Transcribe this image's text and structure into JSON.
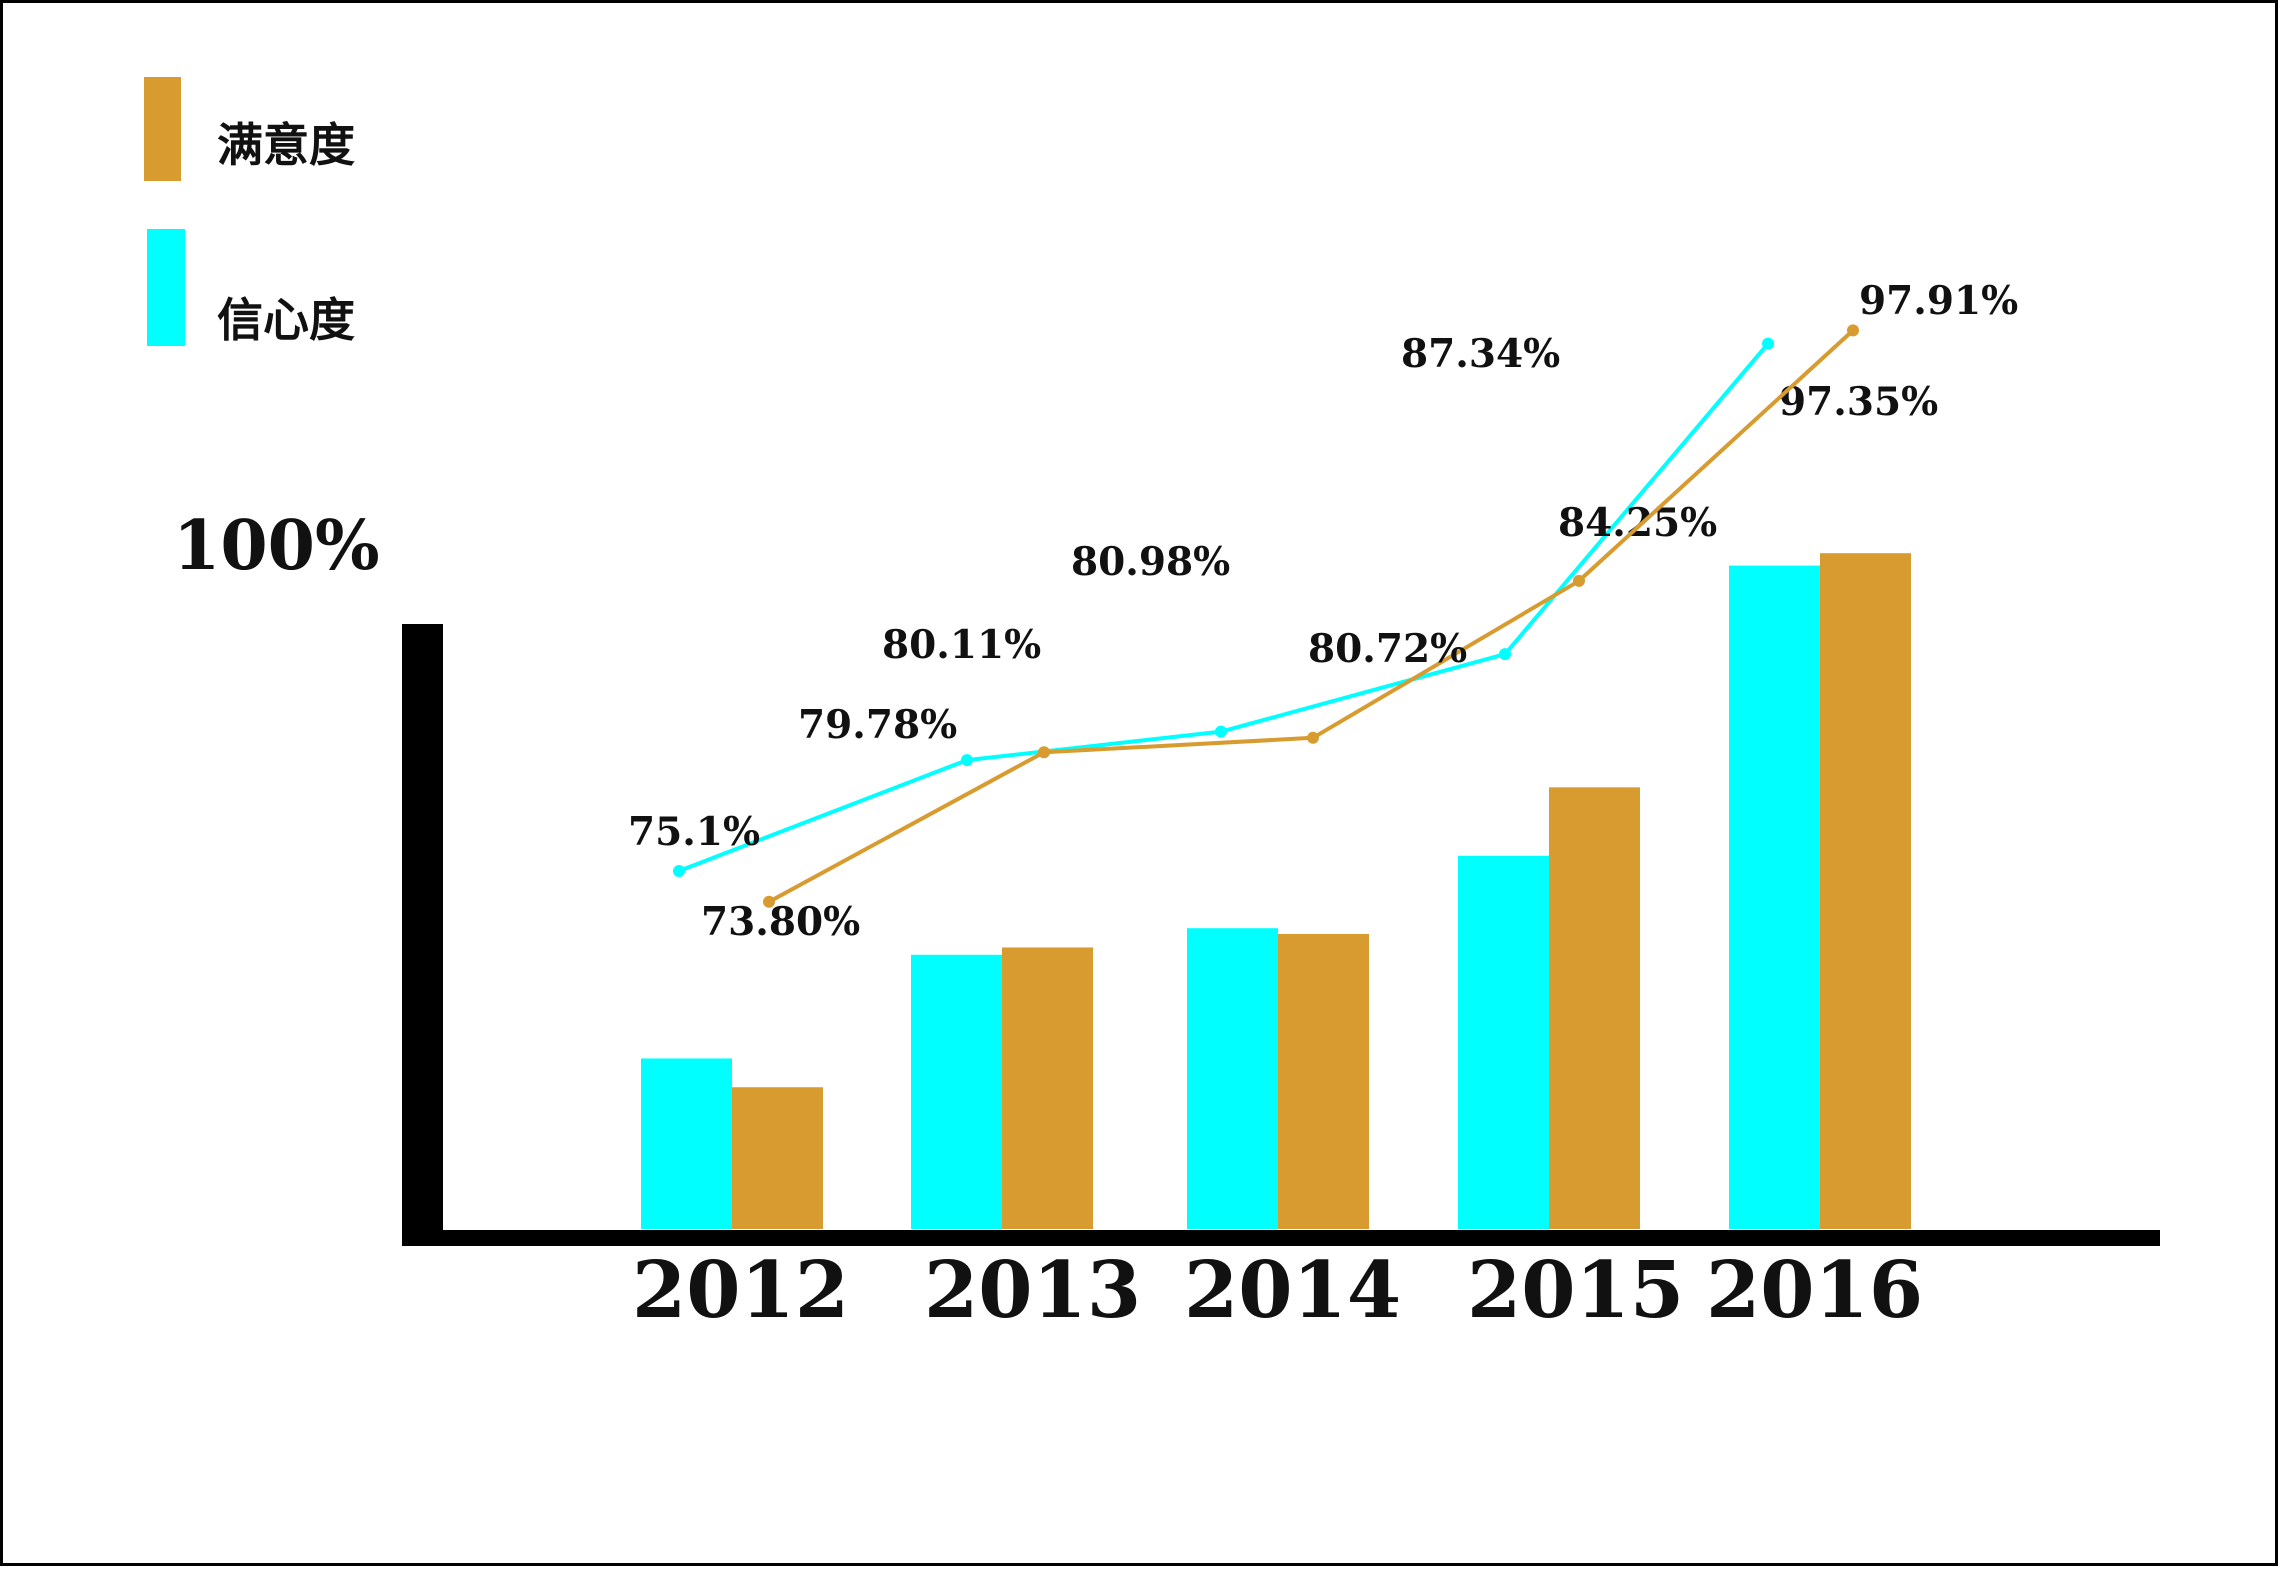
{
  "chart_data": {
    "type": "bar",
    "categories": [
      "2012",
      "2013",
      "2014",
      "2015",
      "2016"
    ],
    "ymax_label": "100%",
    "colors": {
      "信心度": "#00FFFF",
      "满意度": "#D79B2F"
    },
    "series": [
      {
        "name": "满意度",
        "color": "#D79B2F",
        "values": [
          73.8,
          80.11,
          80.72,
          87.34,
          97.91
        ],
        "labels": [
          "73.80%",
          "80.11%",
          "80.72%",
          "87.34%",
          "97.91%"
        ]
      },
      {
        "name": "信心度",
        "color": "#00FFFF",
        "values": [
          75.1,
          79.78,
          80.98,
          84.25,
          97.35
        ],
        "labels": [
          "75.1%",
          "79.78%",
          "80.98%",
          "84.25%",
          "97.35%"
        ]
      }
    ],
    "legend": [
      {
        "name": "满意度",
        "color": "#D79B2F"
      },
      {
        "name": "信心度",
        "color": "#00FFFF"
      }
    ],
    "legend_position": "top-left",
    "grid": false
  }
}
